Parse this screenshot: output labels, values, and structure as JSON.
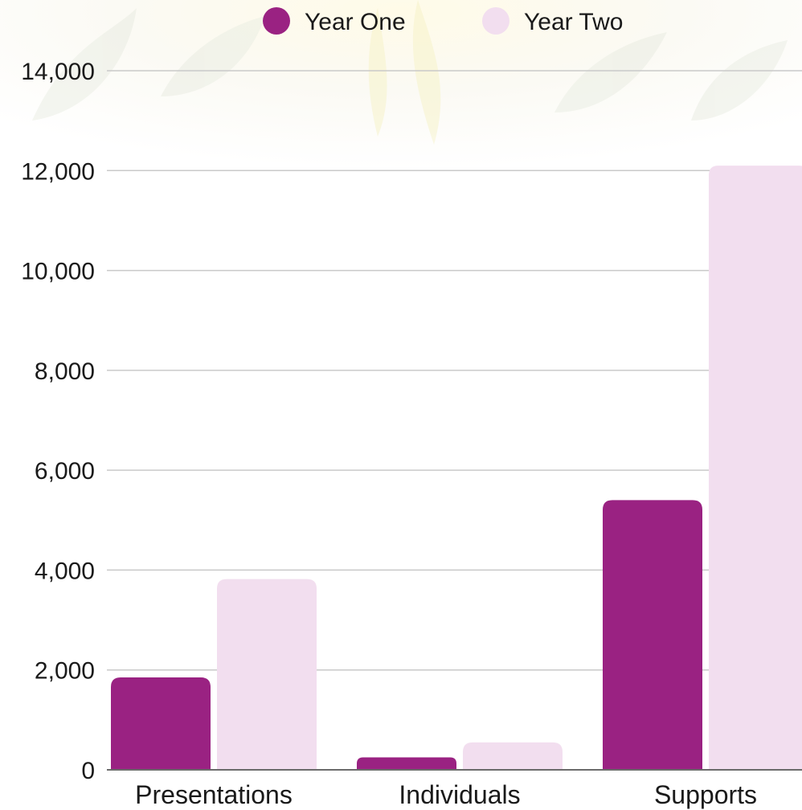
{
  "chart_data": {
    "type": "bar",
    "title": "",
    "xlabel": "",
    "ylabel": "",
    "categories": [
      "Presentations",
      "Individuals",
      "Supports"
    ],
    "series": [
      {
        "name": "Year One",
        "color": "#9a2282",
        "values": [
          1850,
          250,
          5400
        ]
      },
      {
        "name": "Year Two",
        "color": "#f2deef",
        "values": [
          3820,
          550,
          12100
        ]
      }
    ],
    "ylim": [
      0,
      14000
    ],
    "yticks": [
      0,
      2000,
      4000,
      6000,
      8000,
      10000,
      12000,
      14000
    ],
    "ytick_labels": [
      "0",
      "2,000",
      "4,000",
      "6,000",
      "8,000",
      "10,000",
      "12,000",
      "14,000"
    ],
    "grid": true,
    "legend_position": "top-center"
  }
}
